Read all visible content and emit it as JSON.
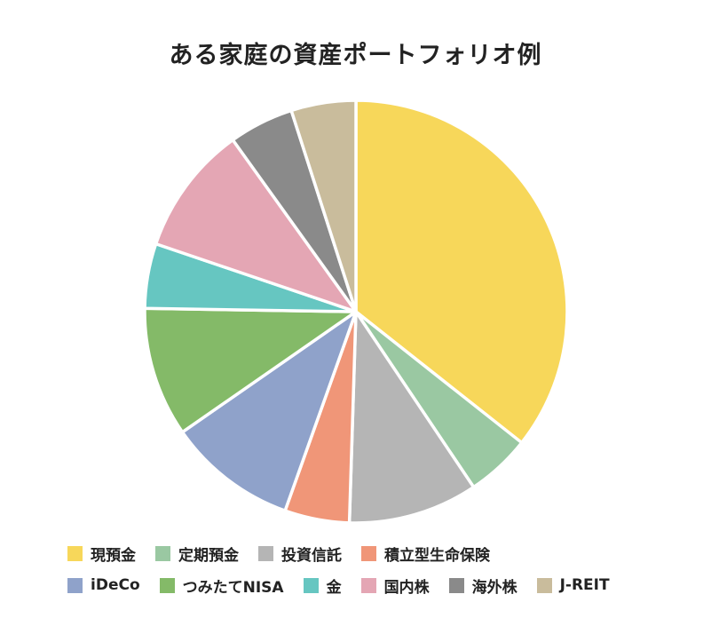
{
  "chart_data": {
    "type": "pie",
    "title": "ある家庭の資産ポートフォリオ例",
    "start_angle_deg": 0,
    "direction": "clockwise",
    "slices": [
      {
        "label": "現預金",
        "value": 36,
        "color": "#F7D75A"
      },
      {
        "label": "定期預金",
        "value": 5,
        "color": "#9AC8A2"
      },
      {
        "label": "投資信託",
        "value": 10,
        "color": "#B5B5B5"
      },
      {
        "label": "積立型生命保険",
        "value": 5,
        "color": "#F09678"
      },
      {
        "label": "iDeCo",
        "value": 10,
        "color": "#8FA2CA"
      },
      {
        "label": "つみたてNISA",
        "value": 10,
        "color": "#84BA68"
      },
      {
        "label": "金",
        "value": 5,
        "color": "#66C6C1"
      },
      {
        "label": "国内株",
        "value": 10,
        "color": "#E4A6B4"
      },
      {
        "label": "海外株",
        "value": 5,
        "color": "#8A8A8A"
      },
      {
        "label": "J-REIT",
        "value": 5,
        "color": "#C9BC9C"
      }
    ],
    "legend_position": "bottom"
  }
}
